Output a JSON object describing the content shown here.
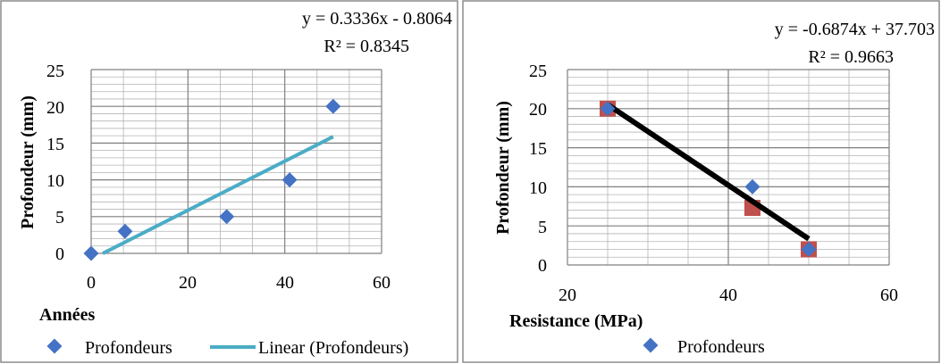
{
  "chart_data": [
    {
      "type": "scatter",
      "title": "",
      "xlabel": "Années",
      "ylabel": "Profondeur (mm)",
      "xlim": [
        0,
        60
      ],
      "ylim": [
        0,
        25
      ],
      "xticks": [
        "0",
        "20",
        "40",
        "60"
      ],
      "yticks": [
        "0",
        "5",
        "10",
        "15",
        "20",
        "25"
      ],
      "grid": true,
      "legend_position": "bottom",
      "series": [
        {
          "name": "Profondeurs",
          "kind": "scatter",
          "marker": "diamond",
          "color": "#4472C4",
          "points": [
            {
              "x": 0,
              "y": 0
            },
            {
              "x": 7,
              "y": 3
            },
            {
              "x": 28,
              "y": 5
            },
            {
              "x": 41,
              "y": 10
            },
            {
              "x": 50,
              "y": 20
            }
          ]
        },
        {
          "name": "Linear (Profondeurs)",
          "kind": "trendline",
          "color": "#4BACC6",
          "slope": 0.3336,
          "intercept": -0.8064,
          "x_range": [
            2.4,
            50
          ]
        }
      ],
      "equation_lines": [
        "y = 0.3336x - 0.8064",
        "R² = 0.8345"
      ]
    },
    {
      "type": "scatter",
      "title": "",
      "xlabel": "Resistance (MPa)",
      "ylabel": "Profondeur (mm)",
      "xlim": [
        20,
        60
      ],
      "ylim": [
        0,
        25
      ],
      "xticks": [
        "20",
        "40",
        "60"
      ],
      "yticks": [
        "0",
        "5",
        "10",
        "15",
        "20",
        "25"
      ],
      "grid": true,
      "legend_position": "bottom",
      "series": [
        {
          "name": "Profondeurs",
          "kind": "scatter",
          "marker": "diamond",
          "color": "#4472C4",
          "points": [
            {
              "x": 25,
              "y": 20
            },
            {
              "x": 43,
              "y": 10
            },
            {
              "x": 50,
              "y": 2
            }
          ]
        },
        {
          "name": "",
          "kind": "scatter",
          "marker": "square",
          "color": "#C0504D",
          "points": [
            {
              "x": 25,
              "y": 20
            },
            {
              "x": 43,
              "y": 7.3
            },
            {
              "x": 50,
              "y": 2
            }
          ]
        },
        {
          "name": "",
          "kind": "trendline",
          "color": "#000000",
          "slope": -0.6874,
          "intercept": 37.703,
          "x_range": [
            25,
            50
          ]
        }
      ],
      "equation_lines": [
        "y = -0.6874x + 37.703",
        "R² = 0.9663"
      ]
    }
  ]
}
